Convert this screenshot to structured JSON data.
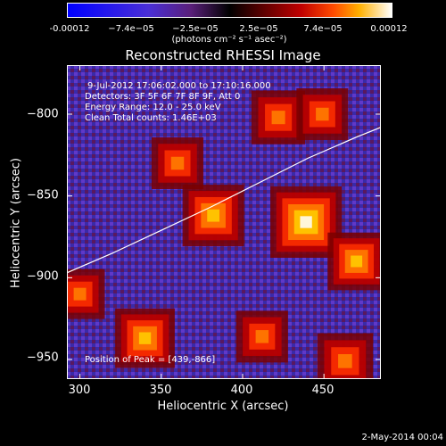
{
  "colorbar": {
    "ticks": [
      "-0.00012",
      "−7.4e−05",
      "−2.5e−05",
      "2.5e−05",
      "7.4e−05",
      "0.00012"
    ],
    "unit": "(photons cm⁻² s⁻¹ asec⁻²)"
  },
  "chart_data": {
    "type": "heatmap",
    "title": "Reconstructed RHESSI Image",
    "xlabel": "Heliocentric X (arcsec)",
    "ylabel": "Heliocentric Y (arcsec)",
    "xlim": [
      292,
      485
    ],
    "ylim": [
      -962,
      -770
    ],
    "x_ticks": [
      300,
      350,
      400,
      450
    ],
    "y_ticks": [
      -800,
      -850,
      -900,
      -950
    ],
    "x_tick_labels": [
      "300",
      "350",
      "400",
      "450"
    ],
    "y_tick_labels": [
      "−800",
      "−850",
      "−900",
      "−950"
    ],
    "limb_curve": {
      "x": [
        292,
        320,
        350,
        380,
        410,
        440,
        470,
        485
      ],
      "y": [
        -897,
        -885,
        -871,
        -857,
        -842,
        -827,
        -814,
        -808
      ]
    },
    "sources": [
      {
        "x": 439,
        "y": -866,
        "intensity": 1.0
      },
      {
        "x": 382,
        "y": -862,
        "intensity": 0.75
      },
      {
        "x": 340,
        "y": -937,
        "intensity": 0.7
      },
      {
        "x": 470,
        "y": -890,
        "intensity": 0.65
      },
      {
        "x": 422,
        "y": -802,
        "intensity": 0.55
      },
      {
        "x": 360,
        "y": -830,
        "intensity": 0.5
      },
      {
        "x": 463,
        "y": -951,
        "intensity": 0.6
      },
      {
        "x": 300,
        "y": -910,
        "intensity": 0.45
      },
      {
        "x": 412,
        "y": -936,
        "intensity": 0.5
      },
      {
        "x": 449,
        "y": -800,
        "intensity": 0.5
      }
    ]
  },
  "info": {
    "time_range": "9-Jul-2012 17:06:02.000 to 17:10:16.000",
    "detectors": "Detectors: 3F 5F 6F 7F 8F 9F, Att 0",
    "energy": "Energy Range: 12.0 - 25.0 keV",
    "clean": "Clean    Total counts: 1.46E+03",
    "peak": "Position of Peak = [439,-866]"
  },
  "footer": {
    "timestamp": "2-May-2014 00:04"
  }
}
